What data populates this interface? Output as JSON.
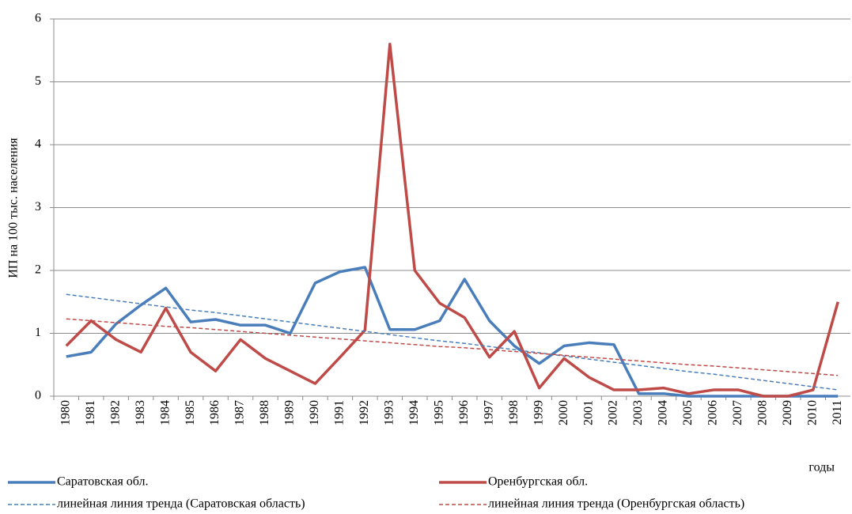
{
  "chart_data": {
    "type": "line",
    "y_label": "ИП на 100 тыс. населения",
    "x_label": "годы",
    "categories": [
      "1980",
      "1981",
      "1982",
      "1983",
      "1984",
      "1985",
      "1986",
      "1987",
      "1988",
      "1989",
      "1990",
      "1991",
      "1992",
      "1993",
      "1994",
      "1995",
      "1996",
      "1997",
      "1998",
      "1999",
      "2000",
      "2001",
      "2002",
      "2003",
      "2004",
      "2005",
      "2006",
      "2007",
      "2008",
      "2009",
      "2010",
      "2011"
    ],
    "series": [
      {
        "name": "Саратовская обл.",
        "color": "#4a7ebb",
        "dashed": false,
        "values": [
          0.63,
          0.7,
          1.15,
          1.45,
          1.72,
          1.18,
          1.22,
          1.13,
          1.13,
          1.0,
          1.8,
          1.98,
          2.05,
          1.06,
          1.06,
          1.2,
          1.86,
          1.2,
          0.8,
          0.52,
          0.8,
          0.85,
          0.82,
          0.04,
          0.04,
          0,
          0,
          0,
          0,
          0,
          0,
          0
        ]
      },
      {
        "name": "Оренбургская обл.",
        "color": "#be4b48",
        "dashed": false,
        "values": [
          0.8,
          1.2,
          0.9,
          0.7,
          1.4,
          0.7,
          0.4,
          0.9,
          0.6,
          0.4,
          0.2,
          0.62,
          1.05,
          5.6,
          2.0,
          1.48,
          1.25,
          0.62,
          1.03,
          0.13,
          0.6,
          0.3,
          0.1,
          0.1,
          0.13,
          0.04,
          0.1,
          0.1,
          0,
          0,
          0.1,
          1.5
        ]
      },
      {
        "name": "линейная линия тренда (Саратовская область)",
        "color": "#4a7ebb",
        "dashed": true,
        "values": [
          1.62,
          1.57,
          1.52,
          1.47,
          1.42,
          1.37,
          1.33,
          1.28,
          1.23,
          1.18,
          1.13,
          1.08,
          1.03,
          0.98,
          0.93,
          0.88,
          0.84,
          0.79,
          0.74,
          0.69,
          0.64,
          0.59,
          0.54,
          0.49,
          0.44,
          0.39,
          0.35,
          0.3,
          0.25,
          0.2,
          0.15,
          0.1
        ]
      },
      {
        "name": "линейная линия тренда (Оренбургская область)",
        "color": "#be4b48",
        "dashed": true,
        "values": [
          1.23,
          1.2,
          1.17,
          1.14,
          1.11,
          1.09,
          1.06,
          1.03,
          1.0,
          0.97,
          0.94,
          0.91,
          0.88,
          0.85,
          0.82,
          0.79,
          0.77,
          0.74,
          0.71,
          0.68,
          0.65,
          0.62,
          0.59,
          0.56,
          0.53,
          0.5,
          0.48,
          0.45,
          0.42,
          0.39,
          0.36,
          0.33
        ]
      }
    ],
    "ylim": [
      0,
      6
    ],
    "yticks": [
      0,
      1,
      2,
      3,
      4,
      5,
      6
    ],
    "grid": true
  }
}
